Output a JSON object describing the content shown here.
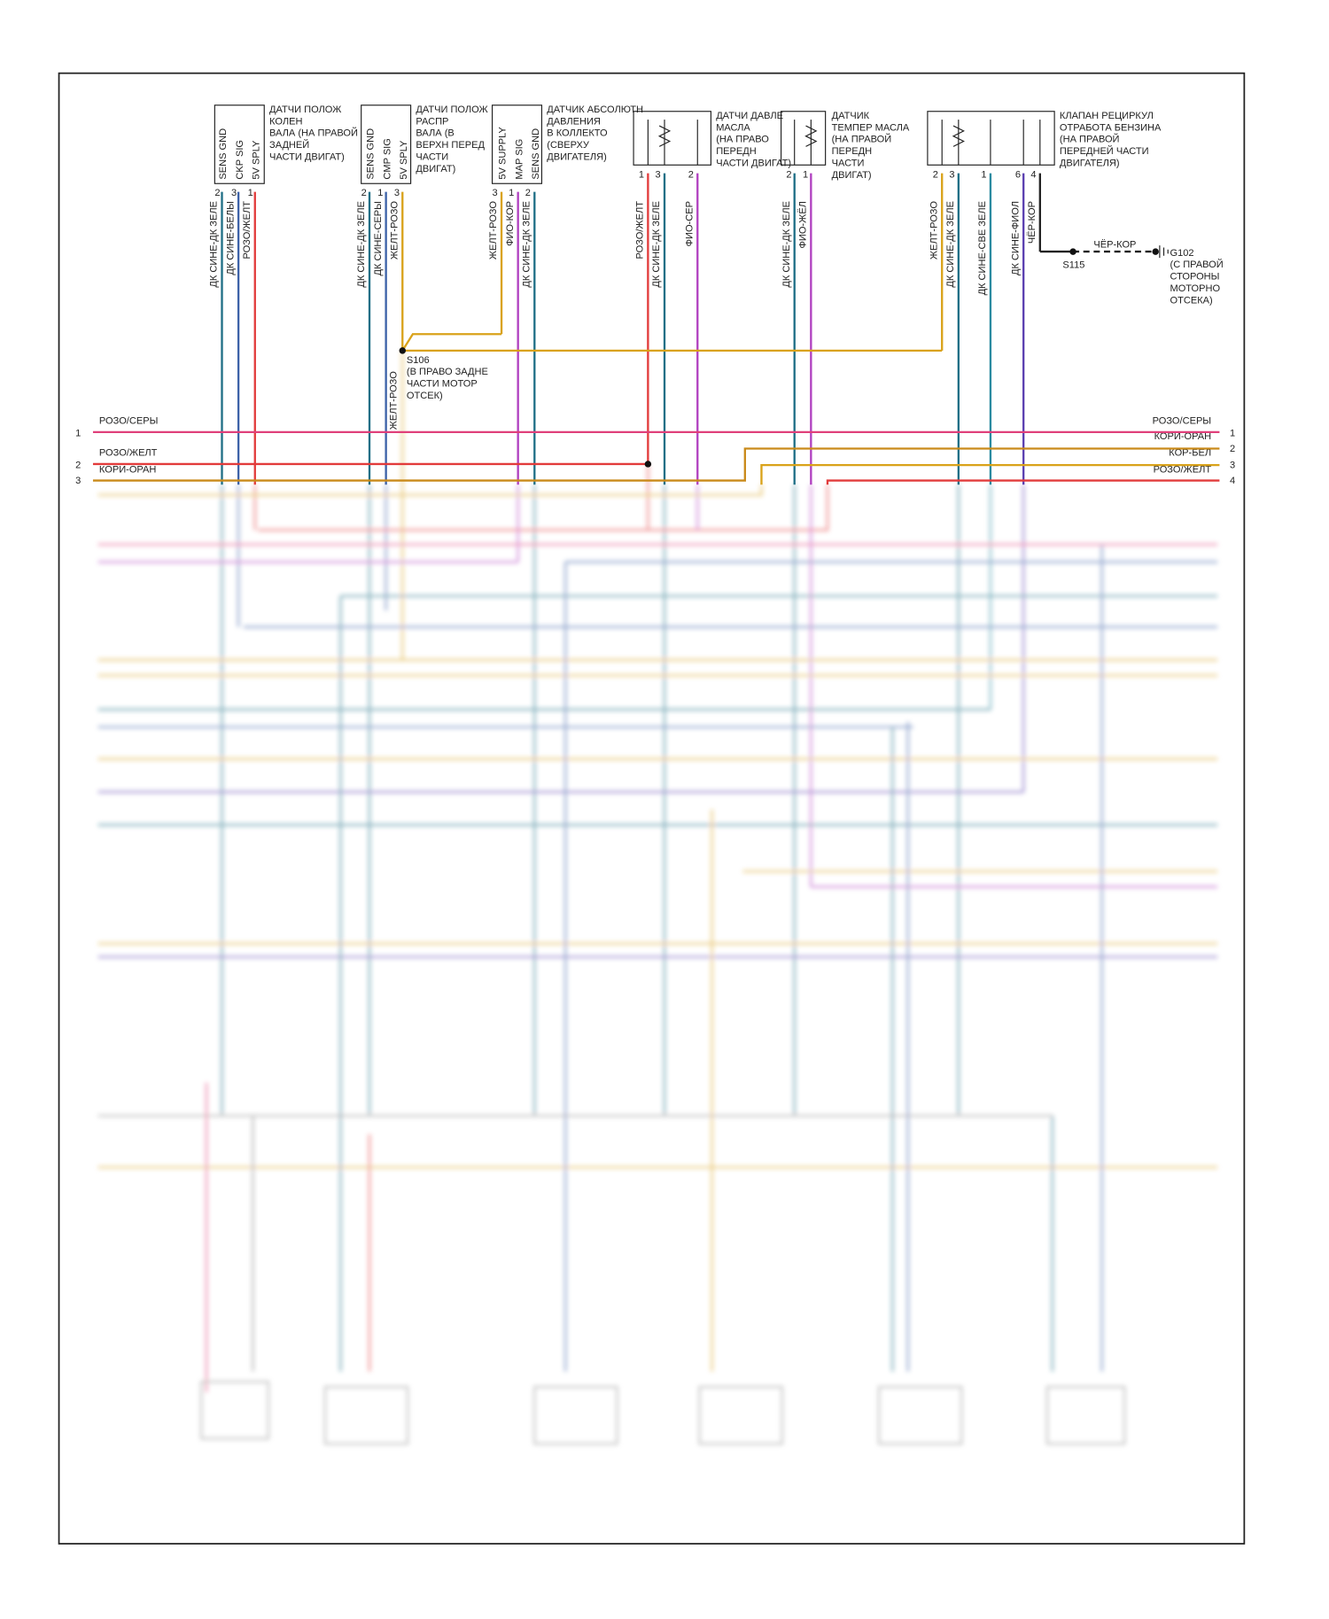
{
  "components": [
    {
      "label": [
        "ДАТЧИ ПОЛОЖ",
        "КОЛЕН",
        "ВАЛА (НА ПРАВОЙ",
        "ЗАДНЕЙ",
        "ЧАСТИ ДВИГАТ)"
      ],
      "pins": [
        "SENS GND",
        "CKP SIG",
        "5V SPLY"
      ],
      "pin_numbers": [
        2,
        3,
        1
      ],
      "wires": [
        "ДК СИНЕ-ДК ЗЕЛЕ",
        "ДК СИНЕ-БЕЛЫ",
        "РОЗО/ЖЕЛТ"
      ]
    },
    {
      "label": [
        "ДАТЧИ ПОЛОЖ",
        "РАСПР",
        "ВАЛА (В",
        "ВЕРХН ПЕРЕД",
        "ЧАСТИ",
        "ДВИГАТ)"
      ],
      "pins": [
        "SENS GND",
        "CMP SIG",
        "5V SPLY"
      ],
      "pin_numbers": [
        2,
        1,
        3
      ],
      "wires": [
        "ДК СИНЕ-ДК ЗЕЛЕ",
        "ДК СИНЕ-СЕРЫ",
        "ЖЕЛТ-РОЗО"
      ]
    },
    {
      "label": [
        "ДАТЧИК АБСОЛЮТН",
        "ДАВЛЕНИЯ",
        "В КОЛЛЕКТО",
        "(СВЕРХУ",
        "ДВИГАТЕЛЯ)"
      ],
      "pins": [
        "5V SUPPLY",
        "MAP SIG",
        "SENS GND"
      ],
      "pin_numbers": [
        3,
        1,
        2
      ],
      "wires": [
        "ЖЕЛТ-РОЗО",
        "ФИО-КОР",
        "ДК СИНЕ-ДК ЗЕЛЕ"
      ]
    },
    {
      "label": [
        "ДАТЧИ ДАВЛЕ",
        "МАСЛА",
        "(НА ПРАВО",
        "ПЕРЕДН",
        "ЧАСТИ ДВИГАТ)"
      ],
      "pin_numbers": [
        1,
        3,
        2
      ],
      "wires": [
        "РОЗО/ЖЕЛТ",
        "ДК СИНЕ-ДК ЗЕЛЕ",
        "ФИО-СЕР"
      ]
    },
    {
      "label": [
        "ДАТЧИК",
        "ТЕМПЕР МАСЛА",
        "(НА ПРАВОЙ",
        "ПЕРЕДН",
        "ЧАСТИ",
        "ДВИГАТ)"
      ],
      "pin_numbers": [
        2,
        1
      ],
      "wires": [
        "ДК СИНЕ-ДК ЗЕЛЕ",
        "ФИО-ЖЁЛ"
      ]
    },
    {
      "label": [
        "КЛАПАН РЕЦИРКУЛ",
        "ОТРАБОТА БЕНЗИНА",
        "(НА ПРАВОЙ",
        "ПЕРЕДНЕЙ ЧАСТИ",
        "ДВИГАТЕЛЯ)"
      ],
      "pin_numbers": [
        2,
        3,
        1,
        6,
        4
      ],
      "wires": [
        "ЖЕЛТ-РОЗО",
        "ДК СИНЕ-ДК ЗЕЛЕ",
        "ДК СИНЕ-СВЕ ЗЕЛЕ",
        "ДК СИНЕ-ФИОЛ",
        "ЧЁР-КОР"
      ]
    }
  ],
  "ground": {
    "wire": "ЧЁР-КОР",
    "splice": "S115",
    "label": [
      "G102",
      "(С ПРАВОЙ",
      "СТОРОНЫ",
      "МОТОРНО",
      "ОТСЕКА)"
    ]
  },
  "splice_s106": {
    "label": [
      "S106",
      "(В ПРАВО ЗАДНЕ",
      "ЧАСТИ МОТОР",
      "ОТСЕК)"
    ],
    "wire": "ЖЕЛТ-РОЗО"
  },
  "left_connector": [
    {
      "pin": 1,
      "wire": "РОЗО/СЕРЫ"
    },
    {
      "pin": 2,
      "wire": "РОЗО/ЖЕЛТ"
    },
    {
      "pin": 3,
      "wire": "КОРИ-ОРАН"
    }
  ],
  "right_connector": [
    {
      "pin": 1,
      "wire": "РОЗО/СЕРЫ"
    },
    {
      "pin": 2,
      "wire": "КОРИ-ОРАН"
    },
    {
      "pin": 3,
      "wire": "КОР-БЕЛ"
    },
    {
      "pin": 4,
      "wire": "РОЗО/ЖЕЛТ"
    }
  ]
}
